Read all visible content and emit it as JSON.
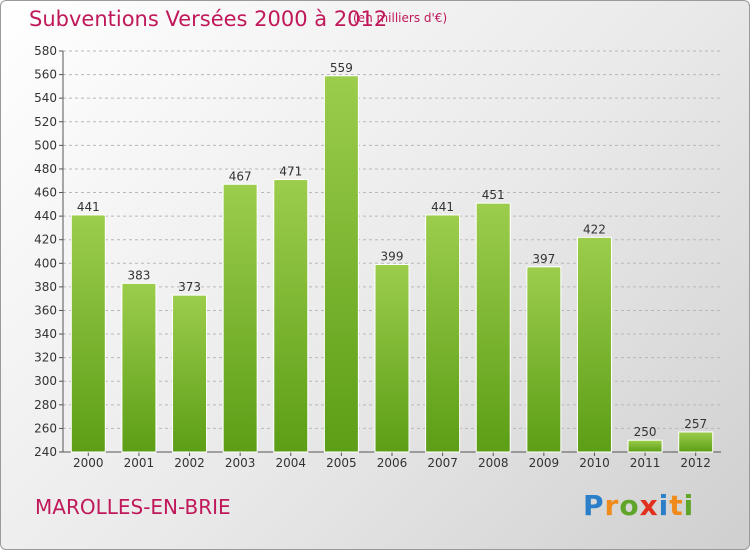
{
  "header": {
    "title": "Subventions Versées 2000 à 2012",
    "subtitle": "(en milliers d'€)"
  },
  "footer": {
    "commune": "MAROLLES-EN-BRIE",
    "logo_text": "Proxiti"
  },
  "colors": {
    "accent": "#c0185a",
    "bar_light": "#9ccd4c",
    "bar_dark": "#5c9e16",
    "logo_letters": [
      "#2a7fc8",
      "#f08a1a",
      "#5fa52a",
      "#e0301e",
      "#2a7fc8",
      "#f08a1a",
      "#5fa52a"
    ]
  },
  "chart_data": {
    "type": "bar",
    "title": "Subventions Versées 2000 à 2012",
    "subtitle": "(en milliers d'€)",
    "xlabel": "",
    "ylabel": "",
    "categories": [
      "2000",
      "2001",
      "2002",
      "2003",
      "2004",
      "2005",
      "2006",
      "2007",
      "2008",
      "2009",
      "2010",
      "2011",
      "2012"
    ],
    "values": [
      441,
      383,
      373,
      467,
      471,
      559,
      399,
      441,
      451,
      397,
      422,
      250,
      257
    ],
    "ylim": [
      240,
      580
    ],
    "yticks": [
      240,
      260,
      280,
      300,
      320,
      340,
      360,
      380,
      400,
      420,
      440,
      460,
      480,
      500,
      520,
      540,
      560,
      580
    ],
    "grid": "horizontal dashed",
    "legend": "none"
  }
}
